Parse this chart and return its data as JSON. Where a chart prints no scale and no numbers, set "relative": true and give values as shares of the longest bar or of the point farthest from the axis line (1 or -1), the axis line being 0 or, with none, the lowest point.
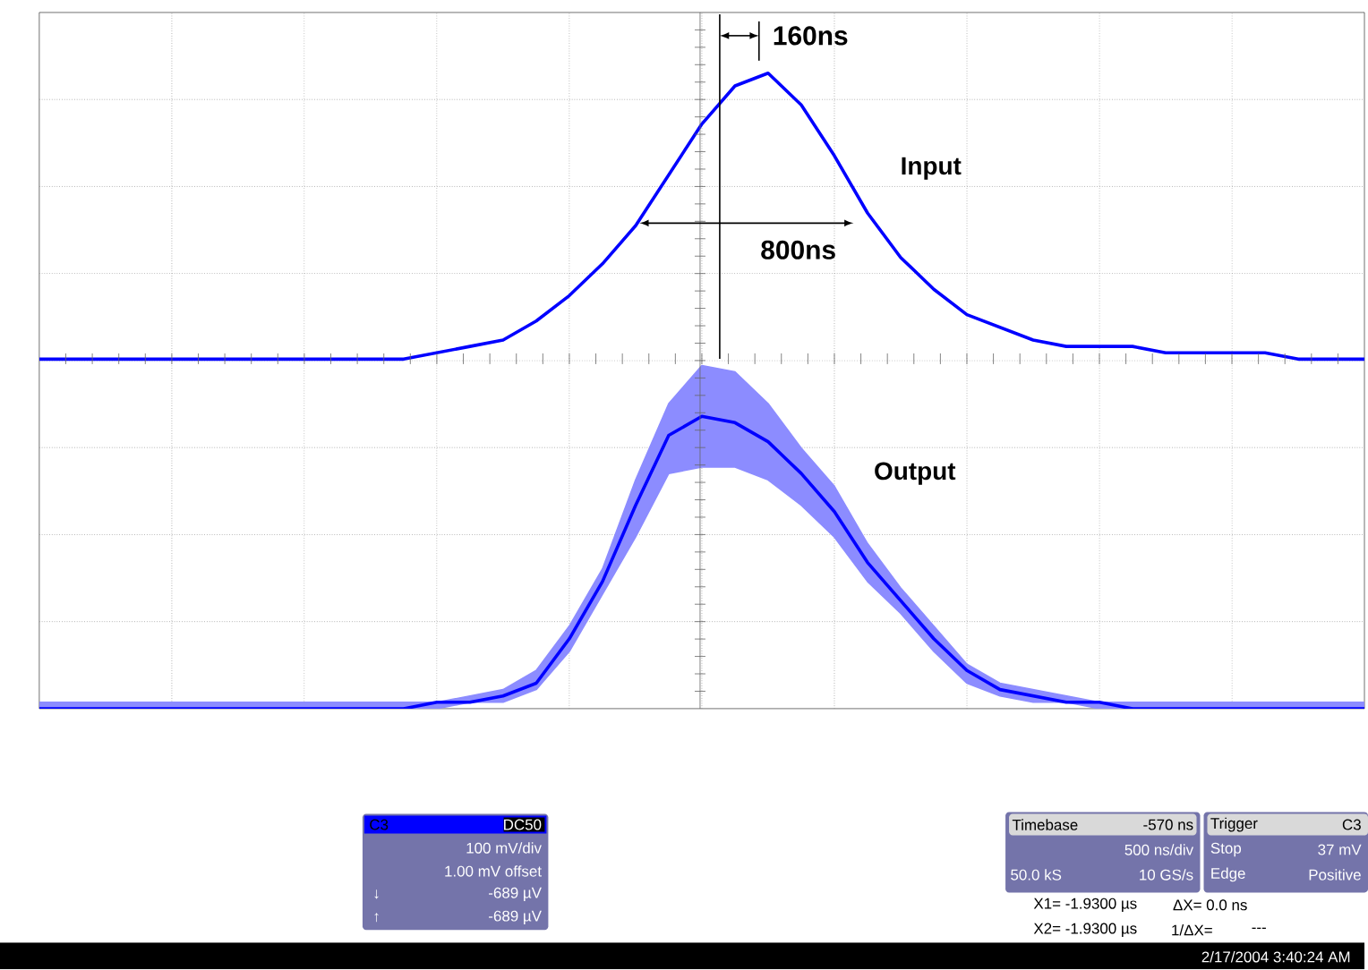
{
  "chart_data": {
    "type": "line",
    "relative": true,
    "grid": true,
    "categories": [
      null,
      null,
      null,
      null,
      null,
      null,
      null,
      null,
      null,
      null,
      null,
      null,
      null,
      null,
      null,
      null,
      null,
      null,
      null,
      null,
      null,
      null,
      null,
      null,
      null,
      null,
      null,
      null,
      null,
      null,
      null,
      null,
      null,
      null,
      null,
      null,
      null,
      null,
      null,
      null,
      null
    ],
    "series": [
      {
        "name": "Input",
        "color": "#0000ff",
        "values": [
          0.55,
          0.55,
          0.55,
          0.55,
          0.55,
          0.55,
          0.55,
          0.55,
          0.55,
          0.55,
          0.55,
          0.55,
          0.56,
          0.57,
          0.58,
          0.61,
          0.65,
          0.7,
          0.76,
          0.84,
          0.92,
          0.98,
          1.0,
          0.95,
          0.87,
          0.78,
          0.71,
          0.66,
          0.62,
          0.6,
          0.58,
          0.57,
          0.57,
          0.57,
          0.56,
          0.56,
          0.56,
          0.56,
          0.55,
          0.55,
          0.55
        ]
      },
      {
        "name": "Output",
        "color": "#0000ff",
        "values": [
          0.0,
          0.0,
          0.0,
          0.0,
          0.0,
          0.0,
          0.0,
          0.0,
          0.0,
          0.0,
          0.0,
          0.0,
          0.01,
          0.01,
          0.02,
          0.04,
          0.11,
          0.2,
          0.32,
          0.43,
          0.46,
          0.45,
          0.42,
          0.37,
          0.31,
          0.23,
          0.17,
          0.11,
          0.06,
          0.03,
          0.02,
          0.01,
          0.01,
          0.0,
          0.0,
          0.0,
          0.0,
          0.0,
          0.0,
          0.0,
          0.0
        ],
        "upper": [
          0.01,
          0.01,
          0.01,
          0.01,
          0.01,
          0.01,
          0.01,
          0.01,
          0.01,
          0.01,
          0.01,
          0.01,
          0.01,
          0.02,
          0.03,
          0.06,
          0.13,
          0.22,
          0.36,
          0.48,
          0.54,
          0.53,
          0.48,
          0.41,
          0.35,
          0.26,
          0.19,
          0.13,
          0.07,
          0.04,
          0.03,
          0.02,
          0.01,
          0.01,
          0.01,
          0.01,
          0.01,
          0.01,
          0.01,
          0.01,
          0.01
        ],
        "lower": [
          0,
          0,
          0,
          0,
          0,
          0,
          0,
          0,
          0,
          0,
          0,
          0,
          0.0,
          0.01,
          0.01,
          0.03,
          0.09,
          0.18,
          0.27,
          0.37,
          0.38,
          0.38,
          0.36,
          0.32,
          0.27,
          0.2,
          0.15,
          0.09,
          0.04,
          0.02,
          0.01,
          0.01,
          0.0,
          0,
          0,
          0,
          0,
          0,
          0,
          0,
          0
        ]
      }
    ],
    "annotations": [
      "160ns",
      "800ns",
      "C3",
      "DC50",
      "100 mV/div",
      "1.00 mV offset",
      "↓",
      "-689 µV",
      "↑",
      "-689 µV",
      "Timebase",
      "-570 ns",
      "500 ns/div",
      "50.0 kS",
      "10 GS/s",
      "Trigger",
      "C3",
      "Stop",
      "37 mV",
      "Edge",
      "Positive",
      "X1= -1.9300 µs",
      "ΔX= 0.0 ns",
      "X2= -1.9300 µs",
      "1/ΔX=",
      "---",
      "2/17/2004 3:40:24 AM"
    ]
  }
}
